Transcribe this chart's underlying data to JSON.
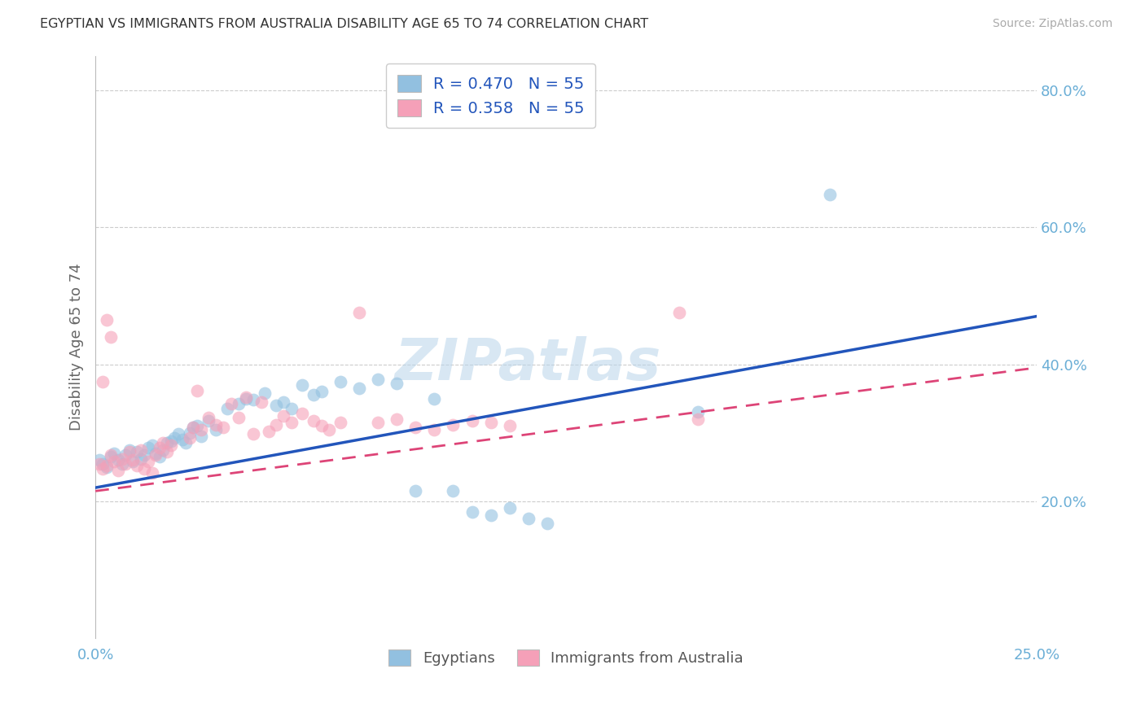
{
  "title": "EGYPTIAN VS IMMIGRANTS FROM AUSTRALIA DISABILITY AGE 65 TO 74 CORRELATION CHART",
  "source": "Source: ZipAtlas.com",
  "ylabel": "Disability Age 65 to 74",
  "xlim": [
    0.0,
    0.25
  ],
  "ylim": [
    0.0,
    0.85
  ],
  "y_ticks_right": [
    0.2,
    0.4,
    0.6,
    0.8
  ],
  "y_tick_labels_right": [
    "20.0%",
    "40.0%",
    "60.0%",
    "80.0%"
  ],
  "x_ticks": [
    0.0,
    0.05,
    0.1,
    0.15,
    0.2,
    0.25
  ],
  "x_tick_labels": [
    "0.0%",
    "",
    "",
    "",
    "",
    "25.0%"
  ],
  "blue_color": "#92c0e0",
  "pink_color": "#f5a0b8",
  "line_blue": "#2255bb",
  "line_pink": "#dd4477",
  "background_color": "#ffffff",
  "grid_color": "#cccccc",
  "axis_label_color": "#6aaed6",
  "watermark": "ZIPatlas",
  "legend_label_blue": "Egyptians",
  "legend_label_pink": "Immigrants from Australia",
  "blue_points": [
    [
      0.001,
      0.26
    ],
    [
      0.002,
      0.255
    ],
    [
      0.003,
      0.25
    ],
    [
      0.004,
      0.265
    ],
    [
      0.005,
      0.27
    ],
    [
      0.006,
      0.26
    ],
    [
      0.007,
      0.255
    ],
    [
      0.008,
      0.268
    ],
    [
      0.009,
      0.275
    ],
    [
      0.01,
      0.258
    ],
    [
      0.011,
      0.272
    ],
    [
      0.012,
      0.262
    ],
    [
      0.013,
      0.268
    ],
    [
      0.014,
      0.278
    ],
    [
      0.015,
      0.282
    ],
    [
      0.016,
      0.27
    ],
    [
      0.017,
      0.265
    ],
    [
      0.018,
      0.275
    ],
    [
      0.019,
      0.285
    ],
    [
      0.02,
      0.288
    ],
    [
      0.021,
      0.292
    ],
    [
      0.022,
      0.298
    ],
    [
      0.023,
      0.29
    ],
    [
      0.024,
      0.285
    ],
    [
      0.025,
      0.3
    ],
    [
      0.026,
      0.308
    ],
    [
      0.027,
      0.31
    ],
    [
      0.028,
      0.295
    ],
    [
      0.03,
      0.318
    ],
    [
      0.032,
      0.305
    ],
    [
      0.035,
      0.335
    ],
    [
      0.038,
      0.342
    ],
    [
      0.04,
      0.35
    ],
    [
      0.042,
      0.348
    ],
    [
      0.045,
      0.358
    ],
    [
      0.048,
      0.34
    ],
    [
      0.05,
      0.345
    ],
    [
      0.052,
      0.335
    ],
    [
      0.055,
      0.37
    ],
    [
      0.058,
      0.355
    ],
    [
      0.06,
      0.36
    ],
    [
      0.065,
      0.375
    ],
    [
      0.07,
      0.365
    ],
    [
      0.075,
      0.378
    ],
    [
      0.08,
      0.372
    ],
    [
      0.085,
      0.215
    ],
    [
      0.09,
      0.35
    ],
    [
      0.095,
      0.215
    ],
    [
      0.1,
      0.185
    ],
    [
      0.105,
      0.18
    ],
    [
      0.11,
      0.19
    ],
    [
      0.115,
      0.175
    ],
    [
      0.12,
      0.168
    ],
    [
      0.16,
      0.33
    ],
    [
      0.195,
      0.648
    ]
  ],
  "pink_points": [
    [
      0.001,
      0.255
    ],
    [
      0.002,
      0.248
    ],
    [
      0.003,
      0.252
    ],
    [
      0.004,
      0.268
    ],
    [
      0.005,
      0.258
    ],
    [
      0.006,
      0.245
    ],
    [
      0.007,
      0.262
    ],
    [
      0.008,
      0.255
    ],
    [
      0.009,
      0.272
    ],
    [
      0.01,
      0.26
    ],
    [
      0.011,
      0.252
    ],
    [
      0.012,
      0.275
    ],
    [
      0.013,
      0.248
    ],
    [
      0.014,
      0.258
    ],
    [
      0.015,
      0.242
    ],
    [
      0.016,
      0.268
    ],
    [
      0.017,
      0.278
    ],
    [
      0.018,
      0.285
    ],
    [
      0.019,
      0.272
    ],
    [
      0.02,
      0.282
    ],
    [
      0.002,
      0.375
    ],
    [
      0.003,
      0.465
    ],
    [
      0.004,
      0.44
    ],
    [
      0.025,
      0.292
    ],
    [
      0.026,
      0.308
    ],
    [
      0.027,
      0.362
    ],
    [
      0.028,
      0.305
    ],
    [
      0.03,
      0.322
    ],
    [
      0.032,
      0.312
    ],
    [
      0.034,
      0.308
    ],
    [
      0.036,
      0.342
    ],
    [
      0.038,
      0.322
    ],
    [
      0.04,
      0.352
    ],
    [
      0.042,
      0.298
    ],
    [
      0.044,
      0.345
    ],
    [
      0.046,
      0.302
    ],
    [
      0.048,
      0.312
    ],
    [
      0.05,
      0.325
    ],
    [
      0.052,
      0.315
    ],
    [
      0.055,
      0.328
    ],
    [
      0.058,
      0.318
    ],
    [
      0.06,
      0.31
    ],
    [
      0.062,
      0.305
    ],
    [
      0.065,
      0.315
    ],
    [
      0.07,
      0.475
    ],
    [
      0.075,
      0.315
    ],
    [
      0.08,
      0.32
    ],
    [
      0.085,
      0.308
    ],
    [
      0.09,
      0.305
    ],
    [
      0.095,
      0.312
    ],
    [
      0.1,
      0.318
    ],
    [
      0.105,
      0.315
    ],
    [
      0.11,
      0.31
    ],
    [
      0.155,
      0.475
    ],
    [
      0.16,
      0.32
    ]
  ]
}
